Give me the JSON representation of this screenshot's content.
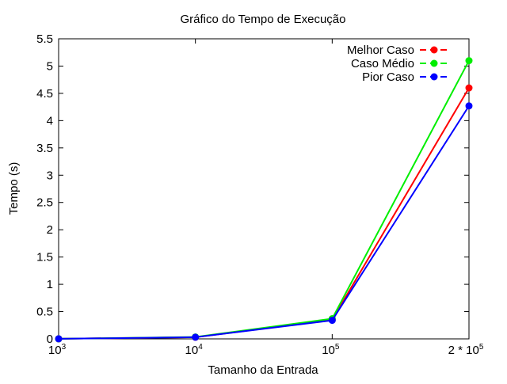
{
  "chart_data": {
    "type": "line",
    "title": "Gráfico do Tempo de Execução",
    "xlabel": "Tamanho da Entrada",
    "ylabel": "Tempo (s)",
    "ylim": [
      0,
      5.5
    ],
    "yticks": [
      "0",
      "0.5",
      "1",
      "1.5",
      "2",
      "2.5",
      "3",
      "3.5",
      "4",
      "4.5",
      "5",
      "5.5"
    ],
    "categories": [
      {
        "base": "10",
        "exp": "3"
      },
      {
        "base": "10",
        "exp": "4"
      },
      {
        "base": "10",
        "exp": "5"
      },
      {
        "base": "2 * 10",
        "exp": "5"
      }
    ],
    "grid": false,
    "legend_position": "top-right",
    "series": [
      {
        "name": "Melhor Caso",
        "color": "#ff0000",
        "values": [
          0.001,
          0.03,
          0.35,
          4.6
        ]
      },
      {
        "name": "Caso Médio",
        "color": "#00ee00",
        "values": [
          0.001,
          0.035,
          0.37,
          5.1
        ]
      },
      {
        "name": "Pior Caso",
        "color": "#0000ff",
        "values": [
          0.001,
          0.03,
          0.34,
          4.27
        ]
      }
    ]
  }
}
